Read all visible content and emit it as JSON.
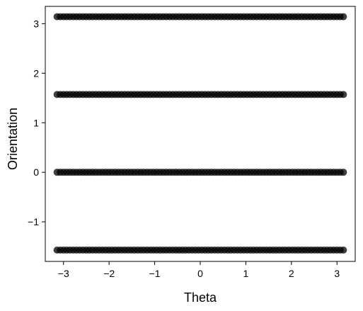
{
  "chart_data": {
    "type": "scatter",
    "title": "",
    "xlabel": "Theta",
    "ylabel": "Orientation",
    "xlim": [
      -3.4,
      3.4
    ],
    "ylim": [
      -1.8,
      3.35
    ],
    "grid": false,
    "legend": false,
    "marker_color": "#000000",
    "x_ticks": [
      -3,
      -2,
      -1,
      0,
      1,
      2,
      3
    ],
    "x_tick_labels": [
      "−3",
      "−2",
      "−1",
      "0",
      "1",
      "2",
      "3"
    ],
    "y_ticks": [
      -1,
      0,
      1,
      2,
      3
    ],
    "y_tick_labels": [
      "−1",
      "0",
      "1",
      "2",
      "3"
    ],
    "series": [
      {
        "x_range": [
          -3.14159,
          3.14159
        ],
        "y_levels": [
          -1.5708,
          0,
          1.5708,
          3.14159
        ],
        "points_per_level": 90
      }
    ]
  }
}
